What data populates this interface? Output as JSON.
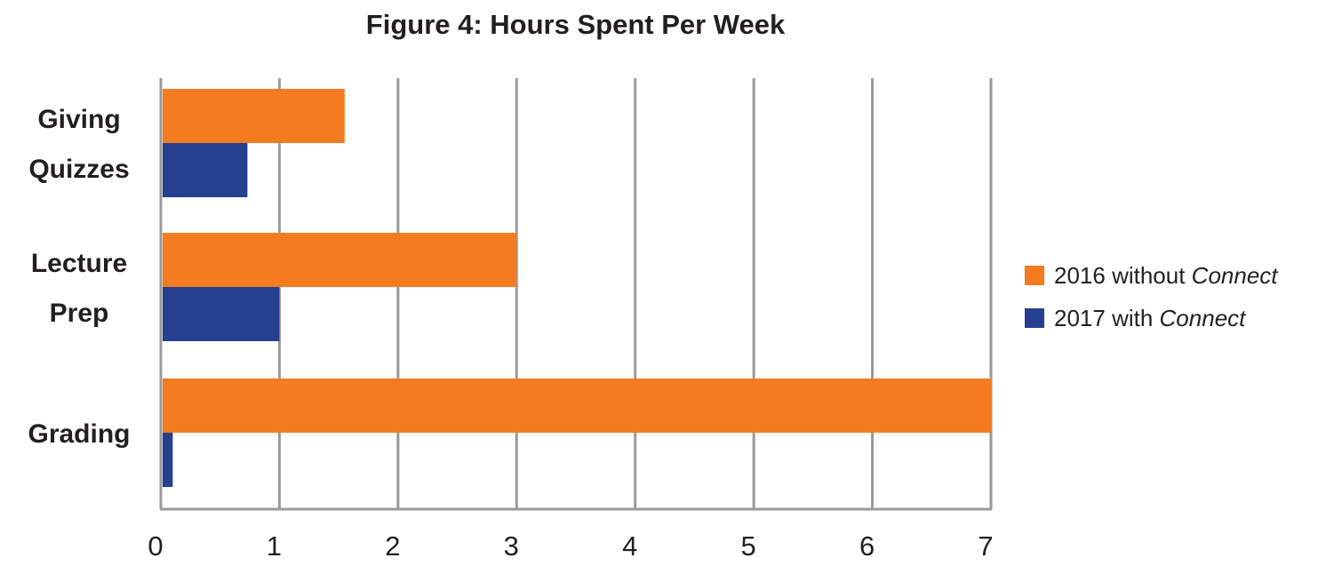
{
  "chart_data": {
    "type": "bar",
    "orientation": "horizontal",
    "title": "Figure 4: Hours Spent Per Week",
    "categories": [
      [
        "Giving",
        "Quizzes"
      ],
      [
        "Lecture",
        "Prep"
      ],
      [
        "Grading"
      ]
    ],
    "series": [
      {
        "name": "2016 without Connect",
        "name_plain": "2016 without ",
        "name_italic": "Connect",
        "color": "#f47b20",
        "values": [
          1.55,
          3.0,
          7.0
        ]
      },
      {
        "name": "2017 with Connect",
        "name_plain": "2017 with ",
        "name_italic": "Connect",
        "color": "#263f8f",
        "values": [
          0.73,
          1.0,
          0.1
        ]
      }
    ],
    "xlim": [
      0,
      7
    ],
    "xticks": [
      "0",
      "1",
      "2",
      "3",
      "4",
      "5",
      "6",
      "7"
    ],
    "grid": true,
    "gridline_color": "#9a9a9a",
    "legend_position": "right"
  }
}
